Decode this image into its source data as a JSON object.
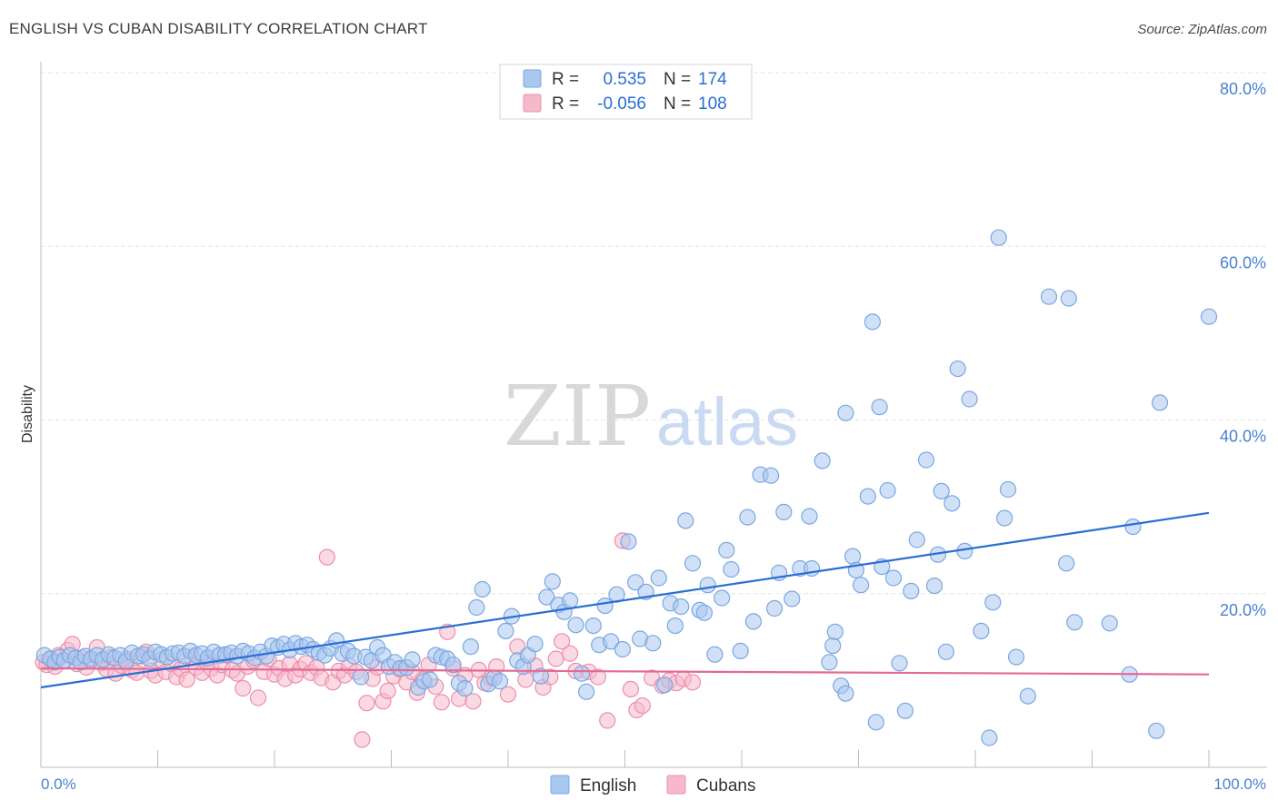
{
  "title": "ENGLISH VS CUBAN DISABILITY CORRELATION CHART",
  "source": "Source: ZipAtlas.com",
  "watermark": {
    "zip": "ZIP",
    "atlas": "atlas"
  },
  "colors": {
    "english_fill": "#a9c8f0",
    "english_stroke": "#7aa7e0",
    "english_line": "#2a6fd4",
    "cuban_fill": "#f6b9cc",
    "cuban_stroke": "#ec8fac",
    "cuban_line": "#e36a95",
    "tick_label": "#4a80d0",
    "grid": "#e3e3e3"
  },
  "legend": {
    "rows": [
      {
        "r_label": "R =",
        "r_value": "0.535",
        "n_label": "N =",
        "n_value": "174"
      },
      {
        "r_label": "R =",
        "r_value": "-0.056",
        "n_label": "N =",
        "n_value": "108"
      }
    ]
  },
  "chart_data": {
    "type": "scatter",
    "title": "ENGLISH VS CUBAN DISABILITY CORRELATION CHART",
    "xlabel": "",
    "ylabel": "Disability",
    "xlim": [
      0,
      100
    ],
    "ylim": [
      0,
      80
    ],
    "x_tick_labels": [
      "0.0%",
      "100.0%"
    ],
    "y_ticks": [
      20,
      40,
      60,
      80
    ],
    "y_tick_labels": [
      "20.0%",
      "40.0%",
      "60.0%",
      "80.0%"
    ],
    "grid": true,
    "legend_position": "top-center",
    "bottom_legend": [
      "English",
      "Cubans"
    ],
    "series": [
      {
        "name": "English",
        "trend": {
          "x": [
            0,
            100
          ],
          "y": [
            9.2,
            29.3
          ]
        },
        "points": [
          [
            0.3,
            12.9
          ],
          [
            0.8,
            12.5
          ],
          [
            1.2,
            12.1
          ],
          [
            1.6,
            12.7
          ],
          [
            2.0,
            12.3
          ],
          [
            2.5,
            12.9
          ],
          [
            3.0,
            12.6
          ],
          [
            3.4,
            12.1
          ],
          [
            3.8,
            12.8
          ],
          [
            4.3,
            12.5
          ],
          [
            4.8,
            12.9
          ],
          [
            5.3,
            12.4
          ],
          [
            5.8,
            13.0
          ],
          [
            6.3,
            12.6
          ],
          [
            6.8,
            12.9
          ],
          [
            7.3,
            12.2
          ],
          [
            7.8,
            13.2
          ],
          [
            8.3,
            12.8
          ],
          [
            8.8,
            13.0
          ],
          [
            9.3,
            12.5
          ],
          [
            9.8,
            13.3
          ],
          [
            10.3,
            13.0
          ],
          [
            10.8,
            12.7
          ],
          [
            11.3,
            13.1
          ],
          [
            11.8,
            13.2
          ],
          [
            12.3,
            12.8
          ],
          [
            12.8,
            13.4
          ],
          [
            13.3,
            12.9
          ],
          [
            13.8,
            13.1
          ],
          [
            14.3,
            12.6
          ],
          [
            14.8,
            13.3
          ],
          [
            15.3,
            12.9
          ],
          [
            15.8,
            13.0
          ],
          [
            16.3,
            13.2
          ],
          [
            16.8,
            12.8
          ],
          [
            17.3,
            13.4
          ],
          [
            17.8,
            13.1
          ],
          [
            18.3,
            12.6
          ],
          [
            18.8,
            13.3
          ],
          [
            19.3,
            12.8
          ],
          [
            19.8,
            14.0
          ],
          [
            20.3,
            13.8
          ],
          [
            20.8,
            14.2
          ],
          [
            21.3,
            13.5
          ],
          [
            21.8,
            14.3
          ],
          [
            22.3,
            13.9
          ],
          [
            22.8,
            14.1
          ],
          [
            23.3,
            13.6
          ],
          [
            23.8,
            13.2
          ],
          [
            24.3,
            12.9
          ],
          [
            24.8,
            13.7
          ],
          [
            25.3,
            14.6
          ],
          [
            25.8,
            13.1
          ],
          [
            26.3,
            13.4
          ],
          [
            26.8,
            12.8
          ],
          [
            27.4,
            10.4
          ],
          [
            27.8,
            12.7
          ],
          [
            28.3,
            12.3
          ],
          [
            28.8,
            13.8
          ],
          [
            29.3,
            12.9
          ],
          [
            29.8,
            11.6
          ],
          [
            30.3,
            12.1
          ],
          [
            30.8,
            11.4
          ],
          [
            31.3,
            11.5
          ],
          [
            31.8,
            12.4
          ],
          [
            32.3,
            9.2
          ],
          [
            32.8,
            9.9
          ],
          [
            33.3,
            10.1
          ],
          [
            33.8,
            12.9
          ],
          [
            34.3,
            12.7
          ],
          [
            34.8,
            12.5
          ],
          [
            35.3,
            11.8
          ],
          [
            35.8,
            9.7
          ],
          [
            36.3,
            9.1
          ],
          [
            36.8,
            13.9
          ],
          [
            37.3,
            18.4
          ],
          [
            37.8,
            20.5
          ],
          [
            38.3,
            9.6
          ],
          [
            38.8,
            10.3
          ],
          [
            39.3,
            9.9
          ],
          [
            39.8,
            15.7
          ],
          [
            40.3,
            17.4
          ],
          [
            40.8,
            12.3
          ],
          [
            41.3,
            11.6
          ],
          [
            41.7,
            12.9
          ],
          [
            42.3,
            14.2
          ],
          [
            42.8,
            10.5
          ],
          [
            43.3,
            19.6
          ],
          [
            43.8,
            21.4
          ],
          [
            44.3,
            18.7
          ],
          [
            44.8,
            17.9
          ],
          [
            45.3,
            19.2
          ],
          [
            45.8,
            16.4
          ],
          [
            46.3,
            10.8
          ],
          [
            46.7,
            8.7
          ],
          [
            47.3,
            16.3
          ],
          [
            47.8,
            14.1
          ],
          [
            48.3,
            18.6
          ],
          [
            48.8,
            14.5
          ],
          [
            49.3,
            19.9
          ],
          [
            49.8,
            13.6
          ],
          [
            50.3,
            26.0
          ],
          [
            50.9,
            21.3
          ],
          [
            51.3,
            14.8
          ],
          [
            51.8,
            20.2
          ],
          [
            52.4,
            14.3
          ],
          [
            52.9,
            21.8
          ],
          [
            53.4,
            9.5
          ],
          [
            53.9,
            18.9
          ],
          [
            54.3,
            16.3
          ],
          [
            54.8,
            18.5
          ],
          [
            55.2,
            28.4
          ],
          [
            55.8,
            23.5
          ],
          [
            56.4,
            18.1
          ],
          [
            56.8,
            17.8
          ],
          [
            57.1,
            21.0
          ],
          [
            57.7,
            13.0
          ],
          [
            58.3,
            19.5
          ],
          [
            58.7,
            25.0
          ],
          [
            59.1,
            22.8
          ],
          [
            59.9,
            13.4
          ],
          [
            60.5,
            28.8
          ],
          [
            61.0,
            16.8
          ],
          [
            61.6,
            33.7
          ],
          [
            62.5,
            33.6
          ],
          [
            62.8,
            18.3
          ],
          [
            63.2,
            22.4
          ],
          [
            63.6,
            29.4
          ],
          [
            64.3,
            19.4
          ],
          [
            65.0,
            22.9
          ],
          [
            65.8,
            28.9
          ],
          [
            66.0,
            22.9
          ],
          [
            66.9,
            35.3
          ],
          [
            67.5,
            12.1
          ],
          [
            67.8,
            14.0
          ],
          [
            68.0,
            15.6
          ],
          [
            68.9,
            40.8
          ],
          [
            68.5,
            9.4
          ],
          [
            68.9,
            8.5
          ],
          [
            69.5,
            24.3
          ],
          [
            69.8,
            22.7
          ],
          [
            70.2,
            21.0
          ],
          [
            70.8,
            31.2
          ],
          [
            71.2,
            51.3
          ],
          [
            71.5,
            5.2
          ],
          [
            72.0,
            23.1
          ],
          [
            71.8,
            41.5
          ],
          [
            72.5,
            31.9
          ],
          [
            73.0,
            21.8
          ],
          [
            73.5,
            12.0
          ],
          [
            74.0,
            6.5
          ],
          [
            74.5,
            20.3
          ],
          [
            75.0,
            26.2
          ],
          [
            75.8,
            35.4
          ],
          [
            76.5,
            20.9
          ],
          [
            76.8,
            24.5
          ],
          [
            77.1,
            31.8
          ],
          [
            77.5,
            13.3
          ],
          [
            78.0,
            30.4
          ],
          [
            78.5,
            45.9
          ],
          [
            79.1,
            24.9
          ],
          [
            79.5,
            42.4
          ],
          [
            80.5,
            15.7
          ],
          [
            81.2,
            3.4
          ],
          [
            81.5,
            19.0
          ],
          [
            82.0,
            61.0
          ],
          [
            82.5,
            28.7
          ],
          [
            82.8,
            32.0
          ],
          [
            83.5,
            12.7
          ],
          [
            84.5,
            8.2
          ],
          [
            86.3,
            54.2
          ],
          [
            88.0,
            54.0
          ],
          [
            87.8,
            23.5
          ],
          [
            88.5,
            16.7
          ],
          [
            91.5,
            16.6
          ],
          [
            93.2,
            10.7
          ],
          [
            93.5,
            27.7
          ],
          [
            95.5,
            4.2
          ],
          [
            95.8,
            42.0
          ],
          [
            100.0,
            51.9
          ]
        ]
      },
      {
        "name": "Cubans",
        "trend": {
          "x": [
            0,
            100
          ],
          "y": [
            11.4,
            10.7
          ]
        },
        "points": [
          [
            0.2,
            12.1
          ],
          [
            0.5,
            11.8
          ],
          [
            0.8,
            12.4
          ],
          [
            1.2,
            11.6
          ],
          [
            1.5,
            12.9
          ],
          [
            1.9,
            12.2
          ],
          [
            2.3,
            13.5
          ],
          [
            2.7,
            14.2
          ],
          [
            3.1,
            11.9
          ],
          [
            3.5,
            12.6
          ],
          [
            3.9,
            11.5
          ],
          [
            4.3,
            12.3
          ],
          [
            4.8,
            13.8
          ],
          [
            5.2,
            12.0
          ],
          [
            5.6,
            11.3
          ],
          [
            6.0,
            12.7
          ],
          [
            6.4,
            10.8
          ],
          [
            6.9,
            11.7
          ],
          [
            7.3,
            12.5
          ],
          [
            7.8,
            11.2
          ],
          [
            8.2,
            10.9
          ],
          [
            8.6,
            12.8
          ],
          [
            9.0,
            13.3
          ],
          [
            9.4,
            11.1
          ],
          [
            9.8,
            10.6
          ],
          [
            10.3,
            12.4
          ],
          [
            10.7,
            11.0
          ],
          [
            11.2,
            11.9
          ],
          [
            11.6,
            10.4
          ],
          [
            12.0,
            11.3
          ],
          [
            12.5,
            10.1
          ],
          [
            12.9,
            12.7
          ],
          [
            13.3,
            11.5
          ],
          [
            13.8,
            10.9
          ],
          [
            14.2,
            12.1
          ],
          [
            14.6,
            11.4
          ],
          [
            15.1,
            10.6
          ],
          [
            15.5,
            11.8
          ],
          [
            15.9,
            12.9
          ],
          [
            16.4,
            11.2
          ],
          [
            16.8,
            10.8
          ],
          [
            17.3,
            9.1
          ],
          [
            17.7,
            11.6
          ],
          [
            18.2,
            12.3
          ],
          [
            18.6,
            8.0
          ],
          [
            19.1,
            11.0
          ],
          [
            19.5,
            12.5
          ],
          [
            20.0,
            10.7
          ],
          [
            20.4,
            11.4
          ],
          [
            20.9,
            10.2
          ],
          [
            21.3,
            11.9
          ],
          [
            21.8,
            10.6
          ],
          [
            22.2,
            11.3
          ],
          [
            22.7,
            12.0
          ],
          [
            23.1,
            10.9
          ],
          [
            23.6,
            11.5
          ],
          [
            24.0,
            10.3
          ],
          [
            24.5,
            24.2
          ],
          [
            25.0,
            9.8
          ],
          [
            25.5,
            11.1
          ],
          [
            26.0,
            10.6
          ],
          [
            26.4,
            11.7
          ],
          [
            27.0,
            11.0
          ],
          [
            27.5,
            3.2
          ],
          [
            27.9,
            7.4
          ],
          [
            28.4,
            10.2
          ],
          [
            28.8,
            11.5
          ],
          [
            29.3,
            7.6
          ],
          [
            29.7,
            8.8
          ],
          [
            30.2,
            10.5
          ],
          [
            30.7,
            11.3
          ],
          [
            31.3,
            9.8
          ],
          [
            31.8,
            11.0
          ],
          [
            32.2,
            8.6
          ],
          [
            32.7,
            10.1
          ],
          [
            33.2,
            11.8
          ],
          [
            33.8,
            9.3
          ],
          [
            34.3,
            7.5
          ],
          [
            34.8,
            15.6
          ],
          [
            35.3,
            11.4
          ],
          [
            35.8,
            7.9
          ],
          [
            36.3,
            10.6
          ],
          [
            37.0,
            7.6
          ],
          [
            37.5,
            11.2
          ],
          [
            38.0,
            9.7
          ],
          [
            38.5,
            10.3
          ],
          [
            39.0,
            11.6
          ],
          [
            40.0,
            8.4
          ],
          [
            40.8,
            13.9
          ],
          [
            41.5,
            10.1
          ],
          [
            42.3,
            11.7
          ],
          [
            43.0,
            9.2
          ],
          [
            43.6,
            10.4
          ],
          [
            44.1,
            12.5
          ],
          [
            44.6,
            14.5
          ],
          [
            45.3,
            13.1
          ],
          [
            45.8,
            11.1
          ],
          [
            46.9,
            11.0
          ],
          [
            47.7,
            10.4
          ],
          [
            48.5,
            5.4
          ],
          [
            49.8,
            26.1
          ],
          [
            50.5,
            9.0
          ],
          [
            51.0,
            6.6
          ],
          [
            51.5,
            7.1
          ],
          [
            52.3,
            10.3
          ],
          [
            53.2,
            9.4
          ],
          [
            53.8,
            10.0
          ],
          [
            54.4,
            9.7
          ],
          [
            55.0,
            10.2
          ],
          [
            55.8,
            9.8
          ]
        ]
      }
    ]
  }
}
